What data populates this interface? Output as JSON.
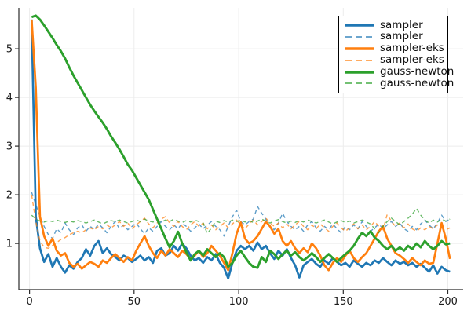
{
  "figure": {
    "background": "#ffffff"
  },
  "colors": {
    "grid": "#ececec",
    "spine": "#2b2b2b",
    "tick_label": "#1c1c1c",
    "legend_border": "#000000",
    "legend_background": "#ffffff",
    "series_blue": "#1f77b4",
    "series_orange": "#ff7f0e",
    "series_green": "#2ca02c"
  },
  "legend": {
    "entries": [
      {
        "label": "sampler"
      },
      {
        "label": "sampler"
      },
      {
        "label": "sampler-eks"
      },
      {
        "label": "sampler-eks"
      },
      {
        "label": "gauss-newton"
      },
      {
        "label": "gauss-newton"
      }
    ]
  },
  "chart_data": {
    "type": "line",
    "title": "",
    "xlabel": "",
    "ylabel": "",
    "xlim": [
      -5.1,
      207.3
    ],
    "ylim": [
      0.05,
      5.84
    ],
    "xticks": [
      0,
      50,
      100,
      150,
      200
    ],
    "yticks": [
      1,
      2,
      3,
      4,
      5
    ],
    "grid": true,
    "legend_position": "top-right",
    "x_start": 1,
    "x_step": 2,
    "series": [
      {
        "name": "sampler",
        "style": "solid",
        "color": "#1f77b4",
        "width": 2.7,
        "opacity": 1,
        "values": [
          5.6,
          1.55,
          0.9,
          0.62,
          0.78,
          0.52,
          0.7,
          0.52,
          0.4,
          0.55,
          0.48,
          0.62,
          0.7,
          0.88,
          0.75,
          0.95,
          1.05,
          0.8,
          0.9,
          0.78,
          0.72,
          0.65,
          0.75,
          0.7,
          0.62,
          0.68,
          0.75,
          0.65,
          0.72,
          0.6,
          0.85,
          0.9,
          0.75,
          0.8,
          0.95,
          0.85,
          1.0,
          0.9,
          0.75,
          0.65,
          0.7,
          0.6,
          0.72,
          0.65,
          0.78,
          0.6,
          0.5,
          0.28,
          0.6,
          0.85,
          0.95,
          0.88,
          0.95,
          0.85,
          1.02,
          0.88,
          0.95,
          0.8,
          0.68,
          0.85,
          0.75,
          0.88,
          0.7,
          0.55,
          0.3,
          0.55,
          0.62,
          0.68,
          0.58,
          0.52,
          0.65,
          0.58,
          0.7,
          0.62,
          0.55,
          0.6,
          0.52,
          0.65,
          0.58,
          0.52,
          0.6,
          0.55,
          0.65,
          0.6,
          0.7,
          0.62,
          0.55,
          0.65,
          0.58,
          0.62,
          0.55,
          0.6,
          0.52,
          0.58,
          0.5,
          0.42,
          0.55,
          0.38,
          0.52,
          0.45,
          0.42
        ]
      },
      {
        "name": "sampler",
        "style": "dashed",
        "color": "#1f77b4",
        "width": 1.4,
        "opacity": 0.72,
        "values": [
          2.05,
          1.8,
          1.55,
          1.35,
          1.18,
          1.1,
          1.3,
          1.22,
          1.42,
          1.28,
          1.18,
          1.32,
          1.38,
          1.25,
          1.35,
          1.28,
          1.4,
          1.32,
          1.22,
          1.35,
          1.45,
          1.3,
          1.38,
          1.28,
          1.35,
          1.42,
          1.3,
          1.2,
          1.32,
          1.25,
          1.35,
          1.45,
          1.35,
          1.28,
          1.38,
          1.3,
          1.42,
          1.35,
          1.25,
          1.32,
          1.4,
          1.3,
          1.38,
          1.45,
          1.35,
          1.28,
          1.15,
          1.35,
          1.55,
          1.68,
          1.45,
          1.38,
          1.45,
          1.5,
          1.76,
          1.62,
          1.5,
          1.35,
          1.28,
          1.42,
          1.62,
          1.45,
          1.35,
          1.28,
          1.35,
          1.25,
          1.38,
          1.45,
          1.32,
          1.25,
          1.35,
          1.28,
          1.4,
          1.3,
          1.22,
          1.35,
          1.28,
          1.38,
          1.3,
          1.45,
          1.35,
          1.25,
          1.32,
          1.4,
          1.3,
          1.38,
          1.45,
          1.35,
          1.42,
          1.3,
          1.25,
          1.35,
          1.28,
          1.4,
          1.48,
          1.38,
          1.3,
          1.42,
          1.58,
          1.45,
          1.5
        ]
      },
      {
        "name": "sampler-eks",
        "style": "solid",
        "color": "#ff7f0e",
        "width": 2.7,
        "opacity": 1,
        "values": [
          5.6,
          4.2,
          1.55,
          1.15,
          0.95,
          1.1,
          0.85,
          0.75,
          0.8,
          0.6,
          0.52,
          0.58,
          0.48,
          0.55,
          0.62,
          0.58,
          0.52,
          0.65,
          0.6,
          0.7,
          0.78,
          0.7,
          0.62,
          0.72,
          0.65,
          0.85,
          1.0,
          1.15,
          0.95,
          0.8,
          0.7,
          0.85,
          0.75,
          0.88,
          0.8,
          0.72,
          0.85,
          0.78,
          0.68,
          0.75,
          0.85,
          0.72,
          0.8,
          0.95,
          0.85,
          0.75,
          0.6,
          0.45,
          0.8,
          1.2,
          1.43,
          1.1,
          1.0,
          1.05,
          1.15,
          1.3,
          1.45,
          1.35,
          1.2,
          1.3,
          1.05,
          0.95,
          1.05,
          0.9,
          0.8,
          0.9,
          0.82,
          1.0,
          0.9,
          0.75,
          0.55,
          0.45,
          0.6,
          0.7,
          0.62,
          0.75,
          0.85,
          0.7,
          0.62,
          0.72,
          0.8,
          0.95,
          1.1,
          1.25,
          1.35,
          1.1,
          0.95,
          0.8,
          0.75,
          0.68,
          0.6,
          0.7,
          0.62,
          0.55,
          0.65,
          0.58,
          0.6,
          1.0,
          1.42,
          1.1,
          0.68
        ]
      },
      {
        "name": "sampler-eks",
        "style": "dashed",
        "color": "#ff7f0e",
        "width": 1.4,
        "opacity": 0.72,
        "values": [
          2.0,
          1.45,
          1.05,
          0.92,
          0.9,
          0.96,
          1.02,
          1.08,
          1.12,
          1.18,
          1.22,
          1.25,
          1.22,
          1.28,
          1.32,
          1.28,
          1.35,
          1.3,
          1.38,
          1.32,
          1.38,
          1.45,
          1.35,
          1.42,
          1.3,
          1.38,
          1.45,
          1.52,
          1.4,
          1.32,
          1.42,
          1.5,
          1.55,
          1.42,
          1.35,
          1.45,
          1.35,
          1.28,
          1.38,
          1.45,
          1.35,
          1.42,
          1.3,
          1.38,
          1.28,
          1.35,
          1.42,
          1.32,
          1.4,
          1.48,
          1.38,
          1.3,
          1.4,
          1.48,
          1.38,
          1.45,
          1.52,
          1.42,
          1.35,
          1.42,
          1.32,
          1.4,
          1.3,
          1.38,
          1.45,
          1.35,
          1.28,
          1.38,
          1.3,
          1.4,
          1.32,
          1.25,
          1.35,
          1.42,
          1.32,
          1.25,
          1.32,
          1.4,
          1.3,
          1.38,
          1.28,
          1.35,
          1.45,
          1.35,
          1.28,
          1.6,
          1.45,
          1.35,
          1.42,
          1.32,
          1.4,
          1.3,
          1.25,
          1.32,
          1.28,
          1.35,
          1.3,
          1.38,
          1.32,
          1.28,
          1.32
        ]
      },
      {
        "name": "gauss-newton",
        "style": "solid",
        "color": "#2ca02c",
        "width": 2.9,
        "opacity": 1,
        "values": [
          5.65,
          5.68,
          5.6,
          5.48,
          5.35,
          5.22,
          5.08,
          4.95,
          4.8,
          4.62,
          4.45,
          4.3,
          4.15,
          4.0,
          3.85,
          3.72,
          3.6,
          3.48,
          3.35,
          3.2,
          3.07,
          2.93,
          2.78,
          2.62,
          2.5,
          2.35,
          2.2,
          2.05,
          1.9,
          1.7,
          1.5,
          1.3,
          1.1,
          0.92,
          1.05,
          1.24,
          1.0,
          0.82,
          0.65,
          0.78,
          0.85,
          0.75,
          0.88,
          0.8,
          0.72,
          0.8,
          0.72,
          0.52,
          0.6,
          0.75,
          0.85,
          0.72,
          0.6,
          0.52,
          0.5,
          0.72,
          0.62,
          0.85,
          0.78,
          0.68,
          0.78,
          0.85,
          0.75,
          0.82,
          0.72,
          0.65,
          0.72,
          0.8,
          0.72,
          0.62,
          0.7,
          0.78,
          0.7,
          0.62,
          0.7,
          0.78,
          0.85,
          0.95,
          1.1,
          1.22,
          1.15,
          1.25,
          1.12,
          1.05,
          0.95,
          0.88,
          0.95,
          0.85,
          0.92,
          0.85,
          0.95,
          0.88,
          1.0,
          0.92,
          1.05,
          0.95,
          0.88,
          0.95,
          1.05,
          0.98,
          1.0
        ]
      },
      {
        "name": "gauss-newton",
        "style": "dashed",
        "color": "#2ca02c",
        "width": 1.4,
        "opacity": 0.72,
        "values": [
          1.58,
          1.5,
          1.46,
          1.44,
          1.47,
          1.45,
          1.48,
          1.45,
          1.43,
          1.46,
          1.44,
          1.47,
          1.45,
          1.42,
          1.45,
          1.48,
          1.44,
          1.4,
          1.44,
          1.47,
          1.45,
          1.48,
          1.45,
          1.42,
          1.45,
          1.48,
          1.45,
          1.5,
          1.46,
          1.44,
          1.47,
          1.44,
          1.48,
          1.45,
          1.5,
          1.46,
          1.43,
          1.47,
          1.44,
          1.48,
          1.45,
          1.42,
          1.2,
          1.32,
          1.46,
          1.43,
          1.47,
          1.44,
          1.48,
          1.45,
          1.48,
          1.44,
          1.47,
          1.43,
          1.46,
          1.5,
          1.46,
          1.42,
          1.46,
          1.49,
          1.45,
          1.42,
          1.46,
          1.43,
          1.47,
          1.44,
          1.48,
          1.45,
          1.42,
          1.45,
          1.48,
          1.44,
          1.4,
          1.44,
          1.47,
          1.43,
          1.46,
          1.42,
          1.45,
          1.48,
          1.44,
          1.4,
          1.3,
          1.22,
          1.35,
          1.45,
          1.52,
          1.45,
          1.38,
          1.45,
          1.52,
          1.6,
          1.72,
          1.58,
          1.48,
          1.42,
          1.48,
          1.44,
          1.5,
          1.46,
          1.5
        ]
      }
    ]
  }
}
